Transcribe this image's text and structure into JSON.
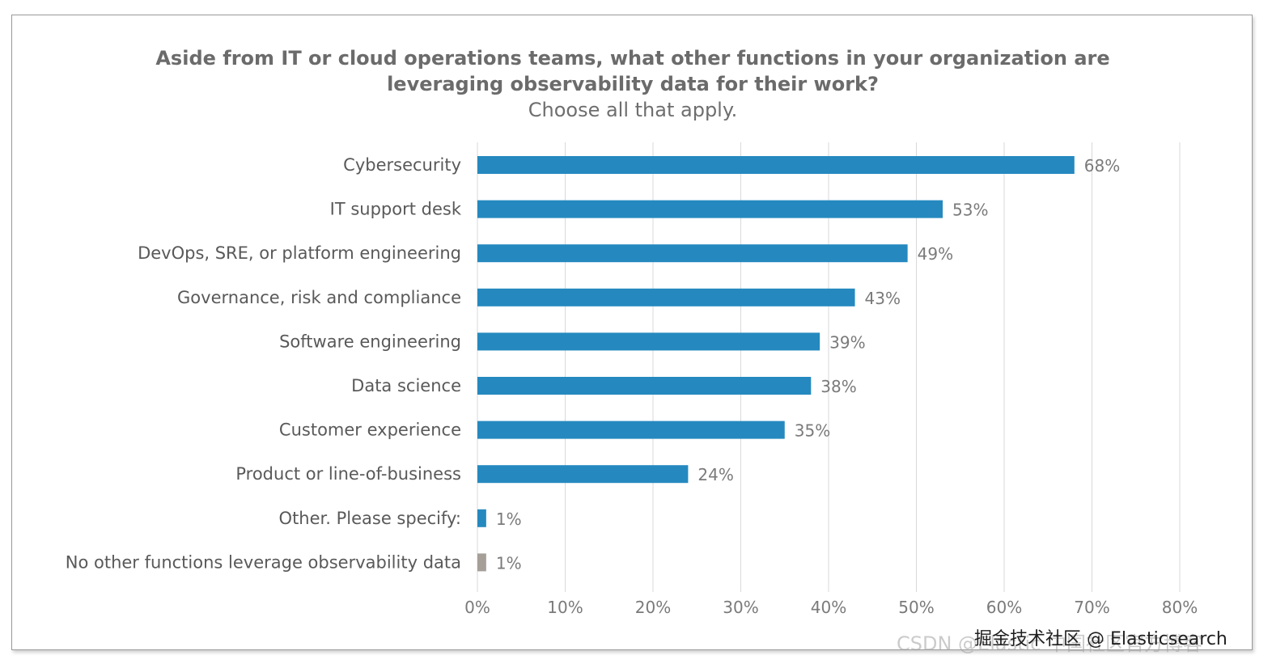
{
  "chart_data": {
    "type": "bar",
    "orientation": "horizontal",
    "title": [
      "Aside from IT or cloud operations teams, what other functions in your organization are",
      "leveraging observability data for their work?"
    ],
    "subtitle": "Choose all that apply.",
    "categories": [
      "Cybersecurity",
      "IT support desk",
      "DevOps, SRE, or platform engineering",
      "Governance, risk and compliance",
      "Software engineering",
      "Data science",
      "Customer experience",
      "Product or line-of-business",
      "Other. Please specify:",
      "No other functions leverage observability data"
    ],
    "values": [
      68,
      53,
      49,
      43,
      39,
      38,
      35,
      24,
      1,
      1
    ],
    "data_labels": [
      "68%",
      "53%",
      "49%",
      "43%",
      "39%",
      "38%",
      "35%",
      "24%",
      "1%",
      "1%"
    ],
    "bar_colors": [
      "#2589bf",
      "#2589bf",
      "#2589bf",
      "#2589bf",
      "#2589bf",
      "#2589bf",
      "#2589bf",
      "#2589bf",
      "#2589bf",
      "#a59f97"
    ],
    "xlim": [
      0,
      80
    ],
    "xticks": [
      "0%",
      "10%",
      "20%",
      "30%",
      "40%",
      "50%",
      "60%",
      "70%",
      "80%"
    ],
    "grid": "vertical",
    "legend": "none"
  },
  "watermark": "CSDN @Elastic 中国社区官方博客",
  "brand": "掘金技术社区 @ Elasticsearch"
}
